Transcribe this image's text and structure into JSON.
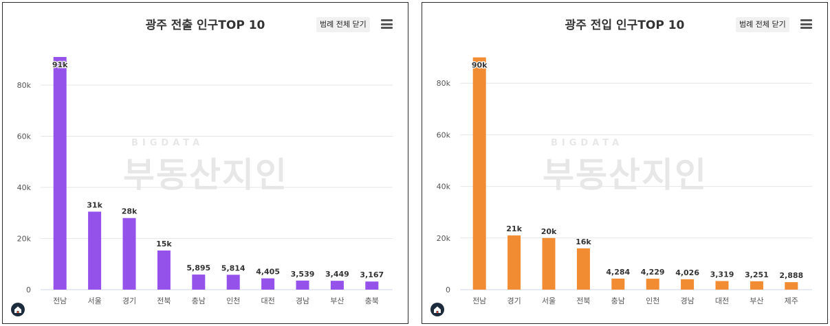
{
  "charts": [
    {
      "id": "left",
      "legend_button": "범례 전체 닫기",
      "watermark_small": "BIGDATA",
      "watermark_big": "부동산지인",
      "menu_icon": "hamburger-menu-icon",
      "logo_icon": "home-logo-icon",
      "bar_color": "#9552EA",
      "chart_data": {
        "type": "bar",
        "title": "광주 전출 인구TOP 10",
        "xlabel": "",
        "ylabel": "",
        "categories": [
          "전남",
          "서울",
          "경기",
          "전북",
          "충남",
          "인천",
          "대전",
          "경남",
          "부산",
          "충북"
        ],
        "values": [
          91000,
          30500,
          28000,
          15300,
          5895,
          5814,
          4405,
          3539,
          3449,
          3167
        ],
        "data_labels": [
          "91k",
          "31k",
          "28k",
          "15k",
          "5,895",
          "5,814",
          "4,405",
          "3,539",
          "3,449",
          "3,167"
        ],
        "ylim": [
          0,
          80000
        ],
        "yticks": [
          0,
          20000,
          40000,
          60000,
          80000
        ],
        "ytick_labels": [
          "0",
          "20k",
          "40k",
          "60k",
          "80k"
        ],
        "grid": true,
        "legend": "none"
      }
    },
    {
      "id": "right",
      "legend_button": "범례 전체 닫기",
      "watermark_small": "BIGDATA",
      "watermark_big": "부동산지인",
      "menu_icon": "hamburger-menu-icon",
      "logo_icon": "home-logo-icon",
      "bar_color": "#F28C33",
      "chart_data": {
        "type": "bar",
        "title": "광주 전입 인구TOP 10",
        "xlabel": "",
        "ylabel": "",
        "categories": [
          "전남",
          "경기",
          "서울",
          "전북",
          "충남",
          "인천",
          "경남",
          "대전",
          "부산",
          "제주"
        ],
        "values": [
          90000,
          21000,
          20000,
          16000,
          4284,
          4229,
          4026,
          3319,
          3251,
          2888
        ],
        "data_labels": [
          "90k",
          "21k",
          "20k",
          "16k",
          "4,284",
          "4,229",
          "4,026",
          "3,319",
          "3,251",
          "2,888"
        ],
        "ylim": [
          0,
          80000
        ],
        "yticks": [
          0,
          20000,
          40000,
          60000,
          80000
        ],
        "ytick_labels": [
          "0",
          "20k",
          "40k",
          "60k",
          "80k"
        ],
        "grid": true,
        "legend": "none"
      }
    }
  ]
}
